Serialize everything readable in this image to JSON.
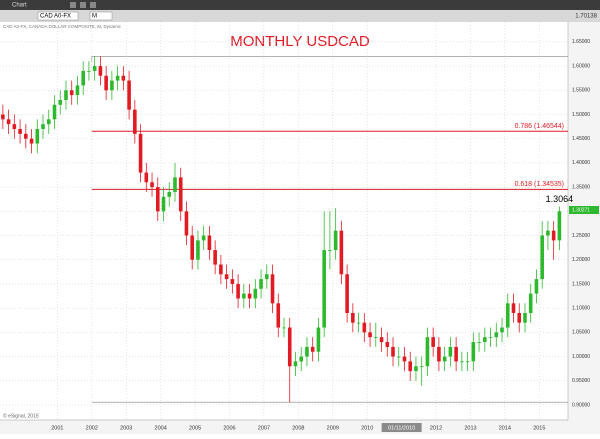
{
  "window_title": "Chart",
  "symbol": "CAD A0-FX",
  "interval": "M",
  "top_price": 1.70138,
  "cursor_label": "01/11/2010",
  "copyright": "© eSignal, 2015",
  "chart_data": {
    "type": "candlestick",
    "title": "MONTHLY USDCAD",
    "subtitle": "CAD A0-FX, CANADA DOLLAR COMPOSITE, M, Dynamic",
    "peak_label": "1.3064",
    "last_price": 1.30271,
    "up_color": "#2eb82e",
    "down_color": "#e01b24",
    "levels": [
      {
        "value": 1.46544,
        "label": "0.786 (1.46544)",
        "color": "#e01b24"
      },
      {
        "value": 1.34535,
        "label": "0.618 (1.34535)",
        "color": "#e01b24"
      }
    ],
    "xlim": [
      0,
      99
    ],
    "xticks": [
      {
        "value": 10,
        "label": "2001"
      },
      {
        "value": 16,
        "label": "2002"
      },
      {
        "value": 22,
        "label": "2003"
      },
      {
        "value": 28,
        "label": "2004"
      },
      {
        "value": 34,
        "label": "2005"
      },
      {
        "value": 40,
        "label": "2006"
      },
      {
        "value": 46,
        "label": "2007"
      },
      {
        "value": 52,
        "label": "2008"
      },
      {
        "value": 58,
        "label": "2009"
      },
      {
        "value": 64,
        "label": "2010"
      },
      {
        "value": 76,
        "label": "2012"
      },
      {
        "value": 82,
        "label": "2013"
      },
      {
        "value": 88,
        "label": "2014"
      },
      {
        "value": 94,
        "label": "2015"
      }
    ],
    "ylim": [
      0.869,
      1.691
    ],
    "yticks": [
      {
        "value": 0.9,
        "label": "0.90000"
      },
      {
        "value": 0.95,
        "label": "0.95000"
      },
      {
        "value": 1.0,
        "label": "1.00000"
      },
      {
        "value": 1.05,
        "label": "1.05000"
      },
      {
        "value": 1.1,
        "label": "1.10000"
      },
      {
        "value": 1.15,
        "label": "1.15000"
      },
      {
        "value": 1.2,
        "label": "1.20000"
      },
      {
        "value": 1.25,
        "label": "1.25000"
      },
      {
        "value": 1.3,
        "label": "1.30000"
      },
      {
        "value": 1.35,
        "label": "1.35000"
      },
      {
        "value": 1.4,
        "label": "1.40000"
      },
      {
        "value": 1.45,
        "label": "1.45000"
      },
      {
        "value": 1.5,
        "label": "1.50000"
      },
      {
        "value": 1.55,
        "label": "1.55000"
      },
      {
        "value": 1.6,
        "label": "1.60000"
      },
      {
        "value": 1.65,
        "label": "1.65000"
      }
    ],
    "grid": true,
    "open": [
      1.5,
      1.49,
      1.48,
      1.47,
      1.46,
      1.45,
      1.44,
      1.47,
      1.48,
      1.49,
      1.52,
      1.53,
      1.55,
      1.54,
      1.56,
      1.59,
      1.59,
      1.6,
      1.58,
      1.55,
      1.57,
      1.58,
      1.57,
      1.51,
      1.46,
      1.38,
      1.36,
      1.35,
      1.3,
      1.33,
      1.34,
      1.37,
      1.3,
      1.25,
      1.2,
      1.24,
      1.25,
      1.22,
      1.19,
      1.17,
      1.16,
      1.15,
      1.12,
      1.13,
      1.12,
      1.14,
      1.16,
      1.17,
      1.11,
      1.06,
      1.06,
      0.98,
      0.99,
      1.0,
      1.02,
      1.01,
      1.06,
      1.22,
      1.22,
      1.26,
      1.17,
      1.09,
      1.07,
      1.07,
      1.05,
      1.04,
      1.04,
      1.03,
      1.02,
      1.0,
      1.0,
      0.99,
      0.97,
      0.98,
      0.98,
      1.04,
      1.02,
      0.99,
      1.0,
      1.02,
      0.99,
      0.99,
      0.99,
      1.03,
      1.03,
      1.04,
      1.04,
      1.05,
      1.06,
      1.11,
      1.09,
      1.07,
      1.09,
      1.13,
      1.16,
      1.25,
      1.26,
      1.24
    ],
    "high": [
      1.52,
      1.51,
      1.5,
      1.49,
      1.48,
      1.47,
      1.49,
      1.5,
      1.51,
      1.54,
      1.55,
      1.57,
      1.57,
      1.58,
      1.61,
      1.61,
      1.62,
      1.62,
      1.6,
      1.59,
      1.6,
      1.6,
      1.59,
      1.53,
      1.48,
      1.4,
      1.38,
      1.37,
      1.35,
      1.36,
      1.4,
      1.39,
      1.32,
      1.27,
      1.26,
      1.27,
      1.27,
      1.24,
      1.21,
      1.19,
      1.18,
      1.17,
      1.15,
      1.15,
      1.16,
      1.18,
      1.19,
      1.19,
      1.13,
      1.08,
      1.08,
      1.01,
      1.02,
      1.04,
      1.04,
      1.08,
      1.3,
      1.3,
      1.3064,
      1.28,
      1.19,
      1.11,
      1.09,
      1.09,
      1.07,
      1.07,
      1.06,
      1.05,
      1.04,
      1.02,
      1.02,
      1.01,
      1.0,
      1.0,
      1.06,
      1.06,
      1.04,
      1.02,
      1.04,
      1.04,
      1.01,
      1.01,
      1.05,
      1.05,
      1.06,
      1.06,
      1.07,
      1.08,
      1.13,
      1.13,
      1.11,
      1.11,
      1.15,
      1.18,
      1.28,
      1.28,
      1.28,
      1.31
    ],
    "low": [
      1.47,
      1.46,
      1.45,
      1.44,
      1.43,
      1.42,
      1.42,
      1.45,
      1.46,
      1.47,
      1.5,
      1.51,
      1.52,
      1.52,
      1.54,
      1.57,
      1.57,
      1.56,
      1.53,
      1.53,
      1.55,
      1.55,
      1.49,
      1.44,
      1.36,
      1.34,
      1.33,
      1.28,
      1.28,
      1.31,
      1.32,
      1.28,
      1.23,
      1.18,
      1.18,
      1.22,
      1.2,
      1.17,
      1.15,
      1.14,
      1.13,
      1.1,
      1.1,
      1.1,
      1.1,
      1.12,
      1.14,
      1.09,
      1.04,
      1.04,
      0.9056,
      0.96,
      0.97,
      0.98,
      0.99,
      0.99,
      1.04,
      1.18,
      1.2,
      1.15,
      1.07,
      1.05,
      1.05,
      1.03,
      1.02,
      1.02,
      1.01,
      1.0,
      0.98,
      0.98,
      0.97,
      0.95,
      0.95,
      0.94,
      0.96,
      1.0,
      0.97,
      0.97,
      0.98,
      0.97,
      0.97,
      0.97,
      0.97,
      1.01,
      1.01,
      1.02,
      1.02,
      1.03,
      1.04,
      1.07,
      1.05,
      1.05,
      1.07,
      1.11,
      1.14,
      1.22,
      1.2,
      1.22
    ],
    "close": [
      1.49,
      1.48,
      1.47,
      1.46,
      1.45,
      1.44,
      1.47,
      1.48,
      1.49,
      1.52,
      1.53,
      1.55,
      1.54,
      1.56,
      1.59,
      1.59,
      1.6,
      1.58,
      1.55,
      1.57,
      1.58,
      1.57,
      1.51,
      1.46,
      1.38,
      1.36,
      1.35,
      1.3,
      1.33,
      1.34,
      1.37,
      1.3,
      1.25,
      1.2,
      1.24,
      1.25,
      1.22,
      1.19,
      1.17,
      1.16,
      1.15,
      1.12,
      1.13,
      1.12,
      1.14,
      1.16,
      1.17,
      1.11,
      1.06,
      1.06,
      0.98,
      0.99,
      1.0,
      1.02,
      1.01,
      1.06,
      1.22,
      1.22,
      1.26,
      1.17,
      1.09,
      1.07,
      1.07,
      1.05,
      1.04,
      1.04,
      1.03,
      1.02,
      1.0,
      1.0,
      0.99,
      0.97,
      0.98,
      0.98,
      1.04,
      1.02,
      0.99,
      1.0,
      1.02,
      0.99,
      0.99,
      0.99,
      1.03,
      1.03,
      1.04,
      1.04,
      1.05,
      1.06,
      1.11,
      1.09,
      1.07,
      1.09,
      1.13,
      1.16,
      1.25,
      1.26,
      1.24,
      1.3
    ]
  }
}
